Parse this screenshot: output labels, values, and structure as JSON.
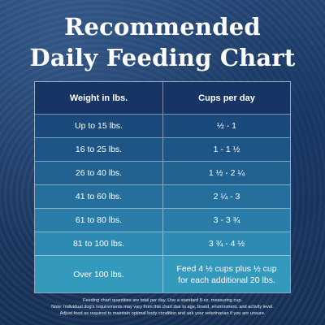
{
  "title": {
    "line1": "Recommended",
    "line2": "Daily Feeding Chart"
  },
  "table": {
    "headers": [
      "Weight in lbs.",
      "Cups per day"
    ],
    "rows": [
      {
        "weight": "Up to 15 lbs.",
        "cups": "½ - 1",
        "color": "#1a4a7c"
      },
      {
        "weight": "16 to 25 lbs.",
        "cups": "1 - 1 ½",
        "color": "#1d5587"
      },
      {
        "weight": "26 to 40 lbs.",
        "cups": "1 ½ - 2 ¼",
        "color": "#216291"
      },
      {
        "weight": "41 to 60 lbs.",
        "cups": "2 ¼ - 3",
        "color": "#256f9c"
      },
      {
        "weight": "61 to 80 lbs.",
        "cups": "3 - 3 ¾",
        "color": "#2a7da8"
      },
      {
        "weight": "81 to 100 lbs.",
        "cups": "3 ¾ - 4 ½",
        "color": "#2e8ab2"
      },
      {
        "weight": "Over 100 lbs.",
        "cups_line1": "Feed 4 ½ cups plus ½ cup",
        "cups_line2": "for each additional 20 lbs.",
        "color": "#3399bd"
      }
    ]
  },
  "footnote": {
    "line1": "Feeding chart quantities are total per day. Use a standard 8-oz. measuring cup.",
    "line2": "Note: Individual dog's requirements may vary from this chart due to age, breed, environment, and activity level.",
    "line3": "Adjust food as required to maintain optimal body condition and ask your veterinarian if you are unsure."
  }
}
